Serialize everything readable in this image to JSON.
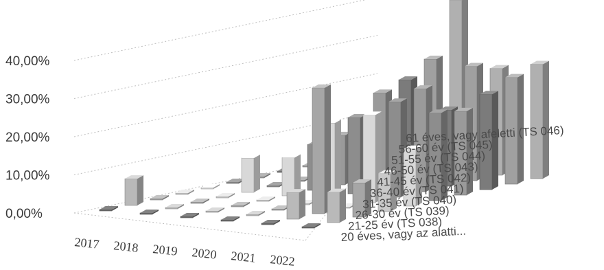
{
  "chart_data": {
    "type": "bar",
    "subtype": "3d-column",
    "categories": [
      "2017",
      "2018",
      "2019",
      "2020",
      "2021",
      "2022"
    ],
    "y_ticks": [
      "0,00%",
      "10,00%",
      "20,00%",
      "30,00%",
      "40,00%"
    ],
    "ylim": [
      0,
      40
    ],
    "grid": true,
    "legend": "series labels along right depth axis",
    "series": [
      {
        "name": "20 éves, vagy az alatti...",
        "values": [
          0,
          0,
          0,
          0,
          0,
          0
        ]
      },
      {
        "name": "21-25 év (TS 038)",
        "values": [
          7,
          0,
          0,
          0,
          7,
          8
        ]
      },
      {
        "name": "26-30 év (TS 039)",
        "values": [
          0,
          0,
          0,
          0,
          33,
          9
        ]
      },
      {
        "name": "31-35 év (TS 040)",
        "values": [
          0,
          0,
          0,
          0,
          0,
          10
        ]
      },
      {
        "name": "36-40 év (TS 041)",
        "values": [
          0,
          9,
          10,
          20,
          23,
          15
        ]
      },
      {
        "name": "41-45 év (TS 042)",
        "values": [
          0,
          0,
          12,
          20,
          25,
          23
        ]
      },
      {
        "name": "46-50 év (TS 043)",
        "values": [
          0,
          0,
          13,
          25,
          27,
          22
        ]
      },
      {
        "name": "51-55 év (TS 044)",
        "values": [
          0,
          0,
          0,
          27,
          20,
          25
        ]
      },
      {
        "name": "56-60 év (TS 045)",
        "values": [
          0,
          0,
          0,
          31,
          30,
          28
        ]
      },
      {
        "name": "61 éves, vagy afeletti (TS 046)",
        "values": [
          0,
          0,
          0,
          45,
          28,
          30
        ]
      }
    ]
  }
}
